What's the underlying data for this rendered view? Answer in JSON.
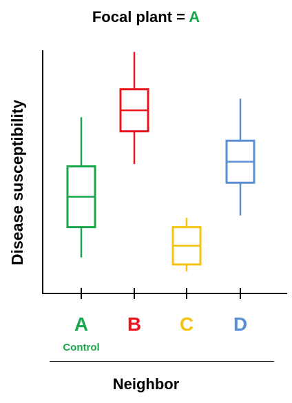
{
  "header": {
    "title_prefix": "Focal plant = ",
    "title_highlight": "A",
    "title_highlight_color": "#1aa64a"
  },
  "chart_data": {
    "type": "box",
    "xlabel": "Neighbor",
    "ylabel": "Disease susceptibility",
    "categories": [
      "A",
      "B",
      "C",
      "D"
    ],
    "subtitles": [
      "Control",
      "",
      "",
      ""
    ],
    "ylim": [
      0,
      100
    ],
    "grid": false,
    "boxes": [
      {
        "name": "A",
        "color": "#1aa64a",
        "min": 11,
        "q1": 24,
        "median": 37,
        "q3": 50,
        "max": 71
      },
      {
        "name": "B",
        "color": "#e8141c",
        "min": 51,
        "q1": 65,
        "median": 74,
        "q3": 83,
        "max": 99
      },
      {
        "name": "C",
        "color": "#f5c20f",
        "min": 5,
        "q1": 8,
        "median": 16,
        "q3": 24,
        "max": 28
      },
      {
        "name": "D",
        "color": "#5b8fd4",
        "min": 29,
        "q1": 43,
        "median": 52,
        "q3": 61,
        "max": 79
      }
    ]
  }
}
